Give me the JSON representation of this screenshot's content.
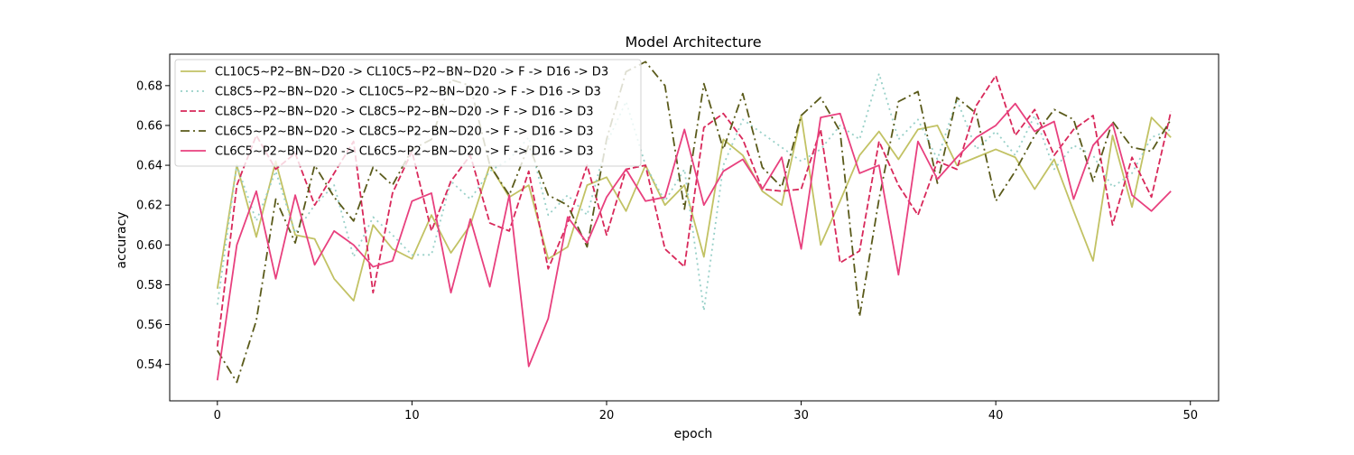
{
  "chart_data": {
    "type": "line",
    "title": "Model Architecture",
    "xlabel": "epoch",
    "ylabel": "accuracy",
    "xlim": [
      -2.45,
      51.45
    ],
    "ylim": [
      0.5217,
      0.6958
    ],
    "xticks": [
      0,
      10,
      20,
      30,
      40,
      50
    ],
    "yticks": [
      0.54,
      0.56,
      0.58,
      0.6,
      0.62,
      0.64,
      0.66,
      0.68
    ],
    "xtick_labels": [
      "0",
      "10",
      "20",
      "30",
      "40",
      "50"
    ],
    "ytick_labels": [
      "0.54",
      "0.56",
      "0.58",
      "0.60",
      "0.62",
      "0.64",
      "0.66",
      "0.68"
    ],
    "grid": false,
    "legend_position": "upper-left",
    "x": [
      0,
      1,
      2,
      3,
      4,
      5,
      6,
      7,
      8,
      9,
      10,
      11,
      12,
      13,
      14,
      15,
      16,
      17,
      18,
      19,
      20,
      21,
      22,
      23,
      24,
      25,
      26,
      27,
      28,
      29,
      30,
      31,
      32,
      33,
      34,
      35,
      36,
      37,
      38,
      39,
      40,
      41,
      42,
      43,
      44,
      45,
      46,
      47,
      48,
      49
    ],
    "series": [
      {
        "name": "CL10C5~P2~BN~D20 -> CL10C5~P2~BN~D20 -> F -> D16 -> D3",
        "color": "#c2c264",
        "dash": "solid",
        "values": [
          0.578,
          0.64,
          0.604,
          0.642,
          0.605,
          0.603,
          0.583,
          0.572,
          0.61,
          0.598,
          0.593,
          0.615,
          0.596,
          0.61,
          0.64,
          0.624,
          0.63,
          0.593,
          0.599,
          0.63,
          0.634,
          0.617,
          0.64,
          0.62,
          0.63,
          0.594,
          0.653,
          0.645,
          0.627,
          0.62,
          0.665,
          0.6,
          0.622,
          0.645,
          0.657,
          0.643,
          0.658,
          0.66,
          0.64,
          0.644,
          0.648,
          0.644,
          0.628,
          0.643,
          0.617,
          0.592,
          0.655,
          0.619,
          0.664,
          0.654
        ]
      },
      {
        "name": "CL8C5~P2~BN~D20 -> CL10C5~P2~BN~D20 -> F -> D16 -> D3",
        "color": "#98d0c8",
        "dash": "dotted",
        "values": [
          0.57,
          0.64,
          0.612,
          0.637,
          0.606,
          0.62,
          0.63,
          0.594,
          0.614,
          0.605,
          0.595,
          0.595,
          0.632,
          0.623,
          0.637,
          0.643,
          0.654,
          0.615,
          0.625,
          0.615,
          0.651,
          0.672,
          0.64,
          0.622,
          0.638,
          0.567,
          0.64,
          0.663,
          0.656,
          0.649,
          0.642,
          0.648,
          0.66,
          0.653,
          0.686,
          0.653,
          0.663,
          0.643,
          0.673,
          0.648,
          0.657,
          0.645,
          0.665,
          0.638,
          0.65,
          0.645,
          0.629,
          0.636,
          0.654,
          0.658
        ]
      },
      {
        "name": "CL8C5~P2~BN~D20 -> CL8C5~P2~BN~D20 -> F -> D16 -> D3",
        "color": "#d8285a",
        "dash": "dashed",
        "values": [
          0.549,
          0.63,
          0.655,
          0.638,
          0.646,
          0.62,
          0.636,
          0.652,
          0.576,
          0.626,
          0.647,
          0.607,
          0.632,
          0.645,
          0.611,
          0.607,
          0.637,
          0.588,
          0.611,
          0.64,
          0.605,
          0.638,
          0.64,
          0.598,
          0.589,
          0.659,
          0.666,
          0.653,
          0.628,
          0.627,
          0.628,
          0.658,
          0.591,
          0.597,
          0.652,
          0.63,
          0.615,
          0.642,
          0.638,
          0.67,
          0.685,
          0.655,
          0.668,
          0.645,
          0.658,
          0.665,
          0.61,
          0.644,
          0.624,
          0.667
        ]
      },
      {
        "name": "CL6C5~P2~BN~D20 -> CL8C5~P2~BN~D20 -> F -> D16 -> D3",
        "color": "#5a5a1a",
        "dash": "dashdot",
        "values": [
          0.547,
          0.531,
          0.562,
          0.623,
          0.601,
          0.64,
          0.624,
          0.612,
          0.639,
          0.63,
          0.648,
          0.653,
          0.683,
          0.68,
          0.64,
          0.625,
          0.65,
          0.625,
          0.62,
          0.599,
          0.653,
          0.687,
          0.692,
          0.68,
          0.618,
          0.681,
          0.648,
          0.676,
          0.639,
          0.629,
          0.665,
          0.674,
          0.657,
          0.564,
          0.623,
          0.672,
          0.677,
          0.631,
          0.674,
          0.666,
          0.622,
          0.637,
          0.655,
          0.668,
          0.663,
          0.632,
          0.662,
          0.649,
          0.647,
          0.663
        ]
      },
      {
        "name": "CL6C5~P2~BN~D20 -> CL6C5~P2~BN~D20 -> F -> D16 -> D3",
        "color": "#e8407e",
        "dash": "solid",
        "values": [
          0.532,
          0.6,
          0.627,
          0.583,
          0.625,
          0.59,
          0.607,
          0.6,
          0.589,
          0.592,
          0.622,
          0.626,
          0.576,
          0.613,
          0.579,
          0.625,
          0.539,
          0.563,
          0.614,
          0.601,
          0.624,
          0.638,
          0.622,
          0.624,
          0.658,
          0.62,
          0.637,
          0.643,
          0.628,
          0.644,
          0.598,
          0.664,
          0.666,
          0.636,
          0.64,
          0.585,
          0.652,
          0.633,
          0.644,
          0.654,
          0.66,
          0.671,
          0.657,
          0.662,
          0.623,
          0.65,
          0.661,
          0.625,
          0.617,
          0.627
        ]
      }
    ]
  }
}
